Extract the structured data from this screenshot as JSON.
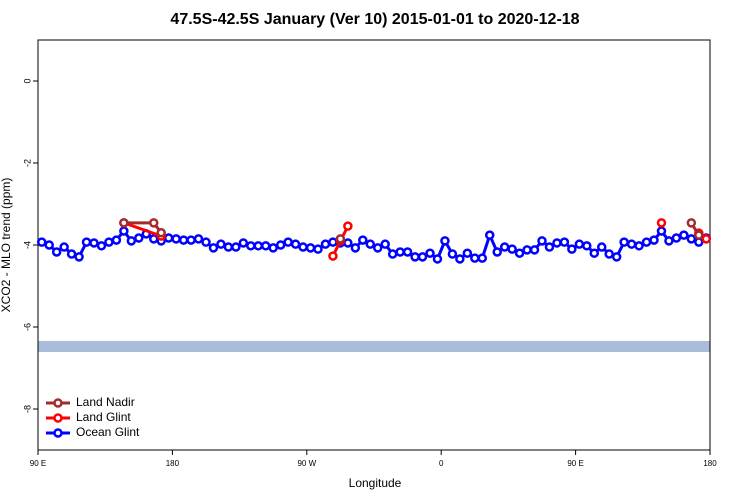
{
  "chart_data": {
    "type": "line",
    "title": "47.5S-42.5S January (Ver 10)   2015-01-01 to 2020-12-18",
    "x_label": "Longitude",
    "y_label": "XCO2 - MLO trend (ppm)",
    "xlim": [
      90,
      540
    ],
    "ylim": [
      -9,
      1
    ],
    "xticks": [
      {
        "value": 90,
        "label": "90 E"
      },
      180,
      {
        "value": 270,
        "label": "90 W"
      },
      {
        "value": 360,
        "label": "0"
      },
      {
        "value": 450,
        "label": "90 E"
      },
      {
        "value": 540,
        "label": "180"
      }
    ],
    "yticks": [
      0,
      -2,
      -4,
      -6,
      -8
    ],
    "band": {
      "range": [
        -6.61,
        -6.34
      ],
      "color": "#a9bcd9"
    },
    "legend": "bottom-left",
    "series": [
      {
        "name": "Land Nadir",
        "color": "#a52a2a",
        "x": [
          147.5,
          167.5,
          172.5,
          202.5,
          292.5,
          402.5,
          527.5,
          532.5
        ],
        "values": [
          -3.46,
          -3.46,
          -3.7,
          null,
          -3.85,
          null,
          -3.46,
          -3.76
        ]
      },
      {
        "name": "Land Glint",
        "color": "#ff0000",
        "x": [
          147.5,
          172.5,
          232.5,
          287.5,
          292.5,
          297.5,
          402.5,
          507.5,
          522.5,
          532.5,
          537.5
        ],
        "values": [
          -3.46,
          -3.78,
          null,
          -4.27,
          -3.9,
          -3.54,
          null,
          -3.46,
          null,
          -3.71,
          -3.85
        ]
      },
      {
        "name": "Ocean Glint",
        "color": "#0000ff",
        "x": [
          92.5,
          97.5,
          102.5,
          107.5,
          112.5,
          117.5,
          122.5,
          127.5,
          132.5,
          137.5,
          142.5,
          147.5,
          152.5,
          157.5,
          162.5,
          167.5,
          172.5,
          177.5,
          182.5,
          187.5,
          192.5,
          197.5,
          202.5,
          207.5,
          212.5,
          217.5,
          222.5,
          227.5,
          232.5,
          237.5,
          242.5,
          247.5,
          252.5,
          257.5,
          262.5,
          267.5,
          272.5,
          277.5,
          282.5,
          287.5,
          292.5,
          297.5,
          302.5,
          307.5,
          312.5,
          317.5,
          322.5,
          327.5,
          332.5,
          337.5,
          342.5,
          347.5,
          352.5,
          357.5,
          362.5,
          367.5,
          372.5,
          377.5,
          382.5,
          387.5,
          392.5,
          397.5,
          402.5,
          407.5,
          412.5,
          417.5,
          422.5,
          427.5,
          432.5,
          437.5,
          442.5,
          447.5,
          452.5,
          457.5,
          462.5,
          467.5,
          472.5,
          477.5,
          482.5,
          487.5,
          492.5,
          497.5,
          502.5,
          507.5,
          512.5,
          517.5,
          522.5,
          527.5,
          532.5,
          537.5
        ],
        "values": [
          -3.93,
          -4.0,
          -4.17,
          -4.05,
          -4.22,
          -4.29,
          -3.93,
          -3.95,
          -4.02,
          -3.93,
          -3.88,
          -3.66,
          -3.9,
          -3.83,
          -3.73,
          -3.85,
          -3.9,
          -3.83,
          -3.85,
          -3.88,
          -3.88,
          -3.85,
          -3.93,
          -4.07,
          -3.98,
          -4.05,
          -4.05,
          -3.95,
          -4.02,
          -4.02,
          -4.02,
          -4.07,
          -4.0,
          -3.93,
          -3.98,
          -4.05,
          -4.07,
          -4.1,
          -3.98,
          -3.93,
          -3.95,
          -3.95,
          -4.07,
          -3.88,
          -3.98,
          -4.07,
          -3.98,
          -4.22,
          -4.17,
          -4.17,
          -4.29,
          -4.29,
          -4.2,
          -4.34,
          -3.9,
          -4.22,
          -4.34,
          -4.2,
          -4.32,
          -4.32,
          -3.76,
          -4.17,
          -4.05,
          -4.1,
          -4.2,
          -4.12,
          -4.12,
          -3.9,
          -4.05,
          -3.95,
          -3.93,
          -4.1,
          -3.98,
          -4.02,
          -4.2,
          -4.05,
          -4.22,
          -4.29,
          -3.93,
          -3.98,
          -4.02,
          -3.93,
          -3.88,
          -3.66,
          -3.9,
          -3.83,
          -3.76,
          -3.85,
          -3.93,
          -3.83
        ]
      }
    ]
  }
}
